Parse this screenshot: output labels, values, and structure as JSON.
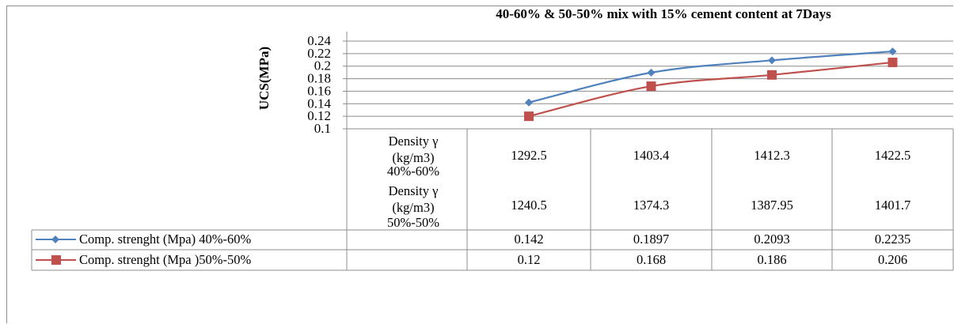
{
  "chart_data": {
    "type": "line",
    "title": "40-60% & 50-50% mix with 15% cement content at 7Days",
    "ylabel": "UCS(MPa)",
    "xlabel": "",
    "ylim": [
      0.1,
      0.24
    ],
    "yticks": [
      "0.1",
      "0.12",
      "0.14",
      "0.16",
      "0.18",
      "0.2",
      "0.22",
      "0.24"
    ],
    "grid": true,
    "legend": "left, inside data table",
    "categories": [
      "1292.5",
      "1403.4",
      "1412.3",
      "1422.5"
    ],
    "category_rows": [
      {
        "label": [
          "Density γ",
          "(kg/m3)",
          "40%-60%"
        ],
        "values": [
          "1292.5",
          "1403.4",
          "1412.3",
          "1422.5"
        ]
      },
      {
        "label": [
          "Density γ",
          "(kg/m3)",
          "50%-50%"
        ],
        "values": [
          "1240.5",
          "1374.3",
          "1387.95",
          "1401.7"
        ]
      }
    ],
    "series": [
      {
        "name": "Comp. strenght (Mpa) 40%-60%",
        "values": [
          0.142,
          0.1897,
          0.2093,
          0.2235
        ],
        "display": [
          "0.142",
          "0.1897",
          "0.2093",
          "0.2235"
        ],
        "color": "#4F81BD",
        "marker": "diamond"
      },
      {
        "name": "Comp. strenght (Mpa )50%-50%",
        "values": [
          0.12,
          0.168,
          0.186,
          0.206
        ],
        "display": [
          "0.12",
          "0.168",
          "0.186",
          "0.206"
        ],
        "color": "#C0504D",
        "marker": "square"
      }
    ]
  }
}
